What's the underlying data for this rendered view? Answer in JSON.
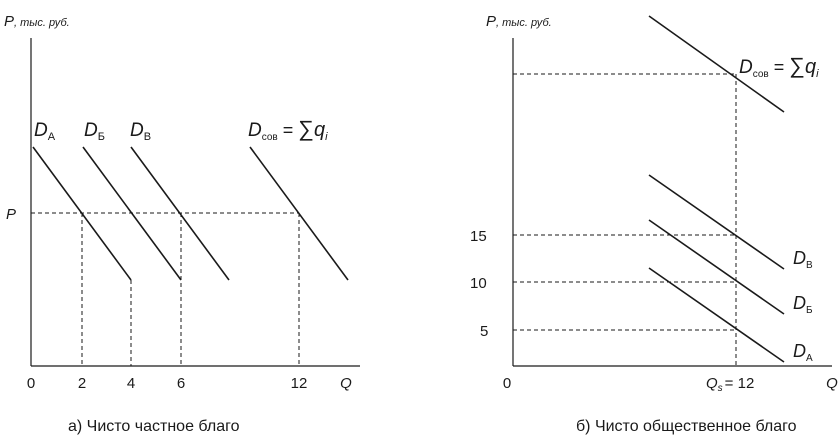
{
  "left_panel": {
    "y_axis_label_main": "P",
    "y_axis_label_unit": ", тыс. руб.",
    "x_axis_label": "Q",
    "p_tick": "P",
    "x_ticks": [
      "0",
      "2",
      "4",
      "6",
      "12"
    ],
    "curves": [
      {
        "sym": "D",
        "sub": "А"
      },
      {
        "sym": "D",
        "sub": "Б"
      },
      {
        "sym": "D",
        "sub": "В"
      }
    ],
    "total_curve": {
      "sym": "D",
      "sub": "сов",
      "eq": " = ",
      "sum": "∑",
      "q": "q",
      "i": "i"
    },
    "caption": "а) Чисто частное благо"
  },
  "right_panel": {
    "y_axis_label_main": "P",
    "y_axis_label_unit": ", тыс. руб.",
    "x_axis_label": "Q",
    "origin": "0",
    "y_ticks": [
      "15",
      "10",
      "5"
    ],
    "qs": {
      "sym": "Q",
      "sub": "s",
      "value": "= 12"
    },
    "curves": [
      {
        "sym": "D",
        "sub": "В"
      },
      {
        "sym": "D",
        "sub": "Б"
      },
      {
        "sym": "D",
        "sub": "А"
      }
    ],
    "total_curve": {
      "sym": "D",
      "sub": "сов",
      "eq": " = ",
      "sum": "∑",
      "q": "q",
      "i": "i"
    },
    "caption": "б) Чисто общественное благо"
  }
}
